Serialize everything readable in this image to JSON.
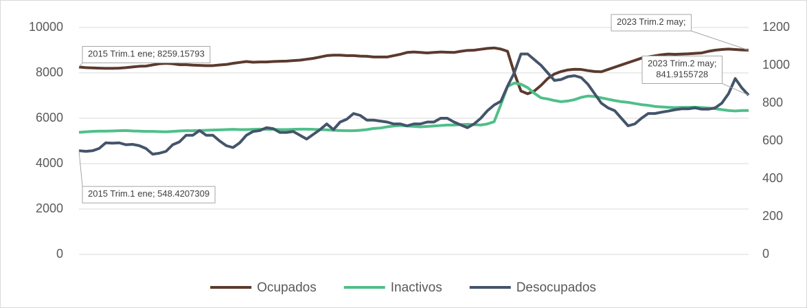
{
  "chart_data": {
    "type": "line",
    "ylim": [
      0,
      10000
    ],
    "yticks": [
      0,
      2000,
      4000,
      6000,
      8000,
      10000
    ],
    "y2lim": [
      0,
      1200
    ],
    "y2ticks": [
      0,
      200,
      400,
      600,
      800,
      1000,
      1200
    ],
    "grid": true,
    "legend": "bottom",
    "series": [
      {
        "name": "Ocupados",
        "color": "#5b3a2e",
        "values": [
          8259.15793,
          8230,
          8220,
          8210,
          8200,
          8200,
          8210,
          8230,
          8260,
          8290,
          8300,
          8350,
          8400,
          8420,
          8400,
          8360,
          8360,
          8340,
          8330,
          8320,
          8320,
          8350,
          8370,
          8420,
          8460,
          8500,
          8470,
          8480,
          8480,
          8500,
          8510,
          8520,
          8540,
          8560,
          8600,
          8640,
          8700,
          8760,
          8780,
          8780,
          8760,
          8760,
          8740,
          8730,
          8700,
          8700,
          8700,
          8760,
          8820,
          8900,
          8920,
          8900,
          8880,
          8900,
          8920,
          8910,
          8900,
          8950,
          8990,
          9000,
          9040,
          9080,
          9100,
          9050,
          8950,
          8000,
          7200,
          7080,
          7200,
          7450,
          7750,
          7950,
          8060,
          8130,
          8160,
          8150,
          8100,
          8060,
          8050,
          8150,
          8250,
          8350,
          8450,
          8550,
          8650,
          8700,
          8750,
          8800,
          8830,
          8820,
          8830,
          8840,
          8860,
          8880,
          8950,
          9000,
          9030,
          9050,
          9030,
          9010,
          9000
        ],
        "value_labels": [
          "2015 Trim.1 ene; 8259.15793",
          null,
          null,
          null,
          null,
          null,
          null,
          null,
          null,
          null,
          null,
          null,
          null,
          null,
          null,
          null,
          null,
          null,
          null,
          null,
          null,
          null,
          null,
          null,
          null,
          null,
          null,
          null,
          null,
          null,
          null,
          null,
          null,
          null,
          null,
          null,
          null,
          null,
          null,
          null,
          null,
          null,
          null,
          null,
          null,
          null,
          null,
          null,
          null,
          null,
          null,
          null,
          null,
          null,
          null,
          null,
          null,
          null,
          null,
          null,
          null,
          null,
          null,
          null,
          null,
          null,
          null,
          null,
          null,
          null,
          null,
          null,
          null,
          null,
          null,
          null,
          null,
          null,
          null,
          null,
          null,
          null,
          null,
          null,
          null,
          null,
          null,
          null,
          null,
          null,
          null,
          null,
          null,
          null,
          null,
          null,
          null,
          null,
          null,
          null,
          "2023 Trim.2 may;"
        ]
      },
      {
        "name": "Inactivos",
        "color": "#4fbf8a",
        "values": [
          5380,
          5400,
          5420,
          5430,
          5430,
          5440,
          5450,
          5460,
          5440,
          5430,
          5420,
          5420,
          5410,
          5400,
          5420,
          5440,
          5450,
          5450,
          5460,
          5470,
          5480,
          5490,
          5500,
          5510,
          5500,
          5500,
          5510,
          5520,
          5510,
          5510,
          5500,
          5500,
          5510,
          5520,
          5520,
          5510,
          5500,
          5490,
          5470,
          5460,
          5450,
          5450,
          5470,
          5500,
          5550,
          5570,
          5620,
          5660,
          5680,
          5660,
          5640,
          5620,
          5640,
          5660,
          5680,
          5700,
          5700,
          5720,
          5730,
          5720,
          5700,
          5750,
          5850,
          6600,
          7400,
          7550,
          7500,
          7350,
          7100,
          6900,
          6850,
          6780,
          6730,
          6760,
          6820,
          6920,
          6980,
          6960,
          6900,
          6840,
          6780,
          6730,
          6700,
          6650,
          6600,
          6570,
          6520,
          6500,
          6480,
          6470,
          6480,
          6480,
          6490,
          6470,
          6450,
          6420,
          6380,
          6340,
          6320,
          6340,
          6340
        ]
      },
      {
        "name": "Desocupados",
        "color": "#44546a",
        "axis": "y2",
        "values": [
          548.4207309,
          545,
          548,
          560,
          590,
          588,
          590,
          580,
          582,
          575,
          560,
          530,
          535,
          545,
          580,
          595,
          630,
          630,
          655,
          630,
          630,
          600,
          575,
          565,
          590,
          630,
          650,
          655,
          670,
          665,
          645,
          645,
          650,
          630,
          610,
          635,
          660,
          690,
          660,
          700,
          715,
          745,
          735,
          710,
          710,
          705,
          700,
          690,
          690,
          680,
          690,
          690,
          700,
          700,
          720,
          720,
          700,
          685,
          670,
          690,
          720,
          760,
          790,
          810,
          890,
          960,
          1060,
          1060,
          1030,
          1000,
          960,
          920,
          925,
          940,
          945,
          935,
          900,
          850,
          800,
          775,
          760,
          720,
          680,
          690,
          720,
          745,
          745,
          752,
          758,
          765,
          770,
          770,
          775,
          768,
          768,
          775,
          800,
          850,
          930,
          880,
          841.9155728
        ],
        "value_labels": [
          "2015 Trim.1 ene; 548.4207309",
          null,
          null,
          null,
          null,
          null,
          null,
          null,
          null,
          null,
          null,
          null,
          null,
          null,
          null,
          null,
          null,
          null,
          null,
          null,
          null,
          null,
          null,
          null,
          null,
          null,
          null,
          null,
          null,
          null,
          null,
          null,
          null,
          null,
          null,
          null,
          null,
          null,
          null,
          null,
          null,
          null,
          null,
          null,
          null,
          null,
          null,
          null,
          null,
          null,
          null,
          null,
          null,
          null,
          null,
          null,
          null,
          null,
          null,
          null,
          null,
          null,
          null,
          null,
          null,
          null,
          null,
          null,
          null,
          null,
          null,
          null,
          null,
          null,
          null,
          null,
          null,
          null,
          null,
          null,
          null,
          null,
          null,
          null,
          null,
          null,
          null,
          null,
          null,
          null,
          null,
          null,
          null,
          null,
          null,
          null,
          null,
          null,
          null,
          null,
          "2023 Trim.2 may;\n841.9155728"
        ]
      }
    ]
  }
}
